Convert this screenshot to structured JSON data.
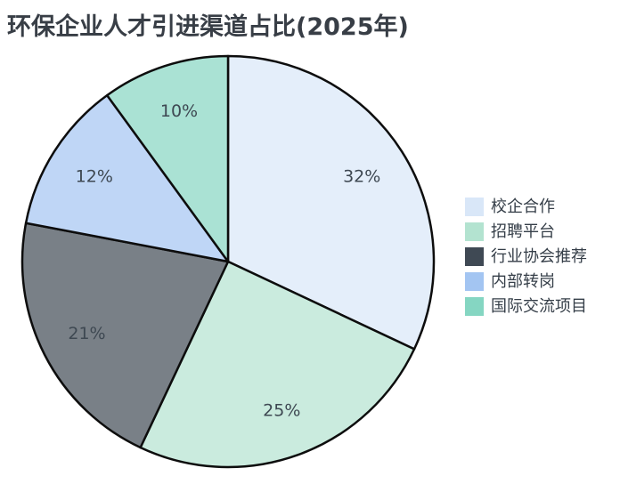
{
  "page": {
    "background_color": "#ffffff"
  },
  "chart_data": {
    "type": "pie",
    "title": "环保企业人才引进渠道占比(2025年)",
    "title_color": "#383e46",
    "start_angle_deg": 0,
    "direction": "clockwise",
    "slices": [
      {
        "label": "校企合作",
        "value": 32,
        "percent_label": "32%",
        "color": "#d9e7f8"
      },
      {
        "label": "招聘平台",
        "value": 25,
        "percent_label": "25%",
        "color": "#b3e3d0"
      },
      {
        "label": "行业协会推荐",
        "value": 21,
        "percent_label": "21%",
        "color": "#3f4954"
      },
      {
        "label": "内部转岗",
        "value": 12,
        "percent_label": "12%",
        "color": "#a3c5f2"
      },
      {
        "label": "国际交流项目",
        "value": 10,
        "percent_label": "10%",
        "color": "#85d6c2"
      }
    ],
    "edge_color": "#0d0d0d",
    "percent_label_color": "#3e4852",
    "legend_position": "right",
    "legend_text_color": "#353e48"
  }
}
